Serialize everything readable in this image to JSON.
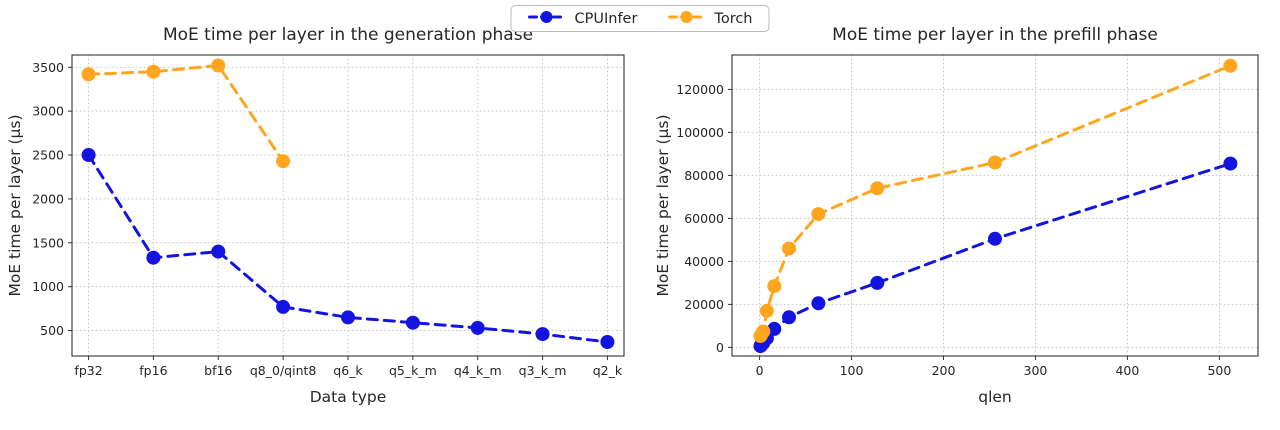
{
  "figure": {
    "background": "#ffffff"
  },
  "legend": {
    "items": [
      {
        "label": "CPUInfer",
        "color": "#1414e0"
      },
      {
        "label": "Torch",
        "color": "#ffa51e"
      }
    ]
  },
  "chart_data": [
    {
      "type": "line",
      "title": "MoE time per layer in the generation phase",
      "xlabel": "Data type",
      "ylabel": "MoE time per layer (μs)",
      "categories": [
        "fp32",
        "fp16",
        "bf16",
        "q8_0/qint8",
        "q6_k",
        "q5_k_m",
        "q4_k_m",
        "q3_k_m",
        "q2_k"
      ],
      "yticks": [
        500,
        1000,
        1500,
        2000,
        2500,
        3000,
        3500
      ],
      "ylim": [
        210,
        3640
      ],
      "grid": true,
      "line_style": "dashed",
      "legend_position": "top-center-shared",
      "series": [
        {
          "name": "CPUInfer",
          "color": "#1414e0",
          "values": [
            2500,
            1330,
            1400,
            770,
            650,
            590,
            530,
            460,
            370
          ]
        },
        {
          "name": "Torch",
          "color": "#ffa51e",
          "values": [
            3420,
            3450,
            3520,
            2430,
            null,
            null,
            null,
            null,
            null
          ]
        }
      ]
    },
    {
      "type": "line",
      "title": "MoE time per layer in the prefill phase",
      "xlabel": "qlen",
      "ylabel": "MoE time per layer (μs)",
      "x": [
        1,
        2,
        4,
        8,
        16,
        32,
        64,
        128,
        256,
        512
      ],
      "xticks": [
        0,
        100,
        200,
        300,
        400,
        500
      ],
      "xlim": [
        -30,
        542
      ],
      "yticks": [
        0,
        20000,
        40000,
        60000,
        80000,
        100000,
        120000
      ],
      "ylim": [
        -4000,
        136000
      ],
      "grid": true,
      "line_style": "dashed",
      "legend_position": "top-center-shared",
      "series": [
        {
          "name": "CPUInfer",
          "color": "#1414e0",
          "values": [
            600,
            1100,
            2100,
            4300,
            8600,
            14000,
            20500,
            30000,
            50500,
            85500
          ]
        },
        {
          "name": "Torch",
          "color": "#ffa51e",
          "values": [
            5300,
            6000,
            7400,
            17000,
            28500,
            46000,
            62000,
            74000,
            86000,
            131000
          ]
        }
      ]
    }
  ]
}
